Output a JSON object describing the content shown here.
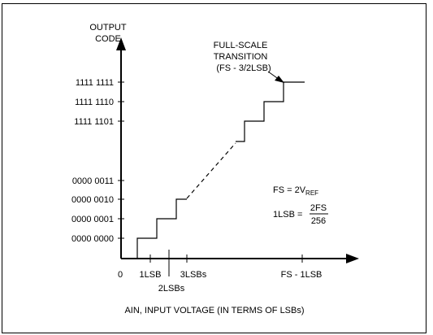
{
  "y_axis": {
    "title_line1": "OUTPUT",
    "title_line2": "CODE"
  },
  "x_axis": {
    "title": "AIN, INPUT VOLTAGE (IN TERMS OF LSBs)"
  },
  "origin_label": "0",
  "y_codes": [
    "1111 1111",
    "1111 1110",
    "1111 1101",
    "0000 0011",
    "0000 0010",
    "0000 0001",
    "0000 0000"
  ],
  "x_ticks": [
    "1LSB",
    "2LSBs",
    "3LSBs",
    "FS - 1LSB"
  ],
  "annotation": {
    "line1": "FULL-SCALE",
    "line2": "TRANSITION",
    "line3": "(FS - 3/2LSB)"
  },
  "formulas": {
    "fs_prefix": "FS = 2V",
    "fs_subscript": "REF",
    "lsb_prefix": "1LSB =",
    "lsb_numerator": "2FS",
    "lsb_denominator": "256"
  }
}
